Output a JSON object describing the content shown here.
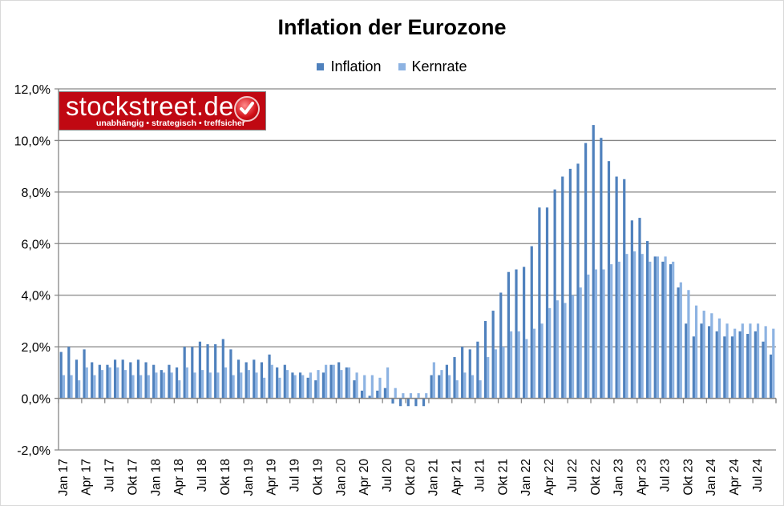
{
  "chart_data": {
    "type": "bar",
    "title": "Inflation der Eurozone",
    "legend_position": "top",
    "grid": true,
    "ylim": [
      -2,
      12
    ],
    "ytick_step": 2,
    "ytick_labels": [
      "-2,0%",
      "0,0%",
      "2,0%",
      "4,0%",
      "6,0%",
      "8,0%",
      "10,0%",
      "12,0%"
    ],
    "colors": {
      "Inflation": "#4f81bd",
      "Kernrate": "#8db3e2"
    },
    "categories": [
      "Jan 17",
      "Feb 17",
      "Mär 17",
      "Apr 17",
      "Mai 17",
      "Jun 17",
      "Jul 17",
      "Aug 17",
      "Sep 17",
      "Okt 17",
      "Nov 17",
      "Dez 17",
      "Jan 18",
      "Feb 18",
      "Mär 18",
      "Apr 18",
      "Mai 18",
      "Jun 18",
      "Jul 18",
      "Aug 18",
      "Sep 18",
      "Okt 18",
      "Nov 18",
      "Dez 18",
      "Jan 19",
      "Feb 19",
      "Mär 19",
      "Apr 19",
      "Mai 19",
      "Jun 19",
      "Jul 19",
      "Aug 19",
      "Sep 19",
      "Okt 19",
      "Nov 19",
      "Dez 19",
      "Jan 20",
      "Feb 20",
      "Mär 20",
      "Apr 20",
      "Mai 20",
      "Jun 20",
      "Jul 20",
      "Aug 20",
      "Sep 20",
      "Okt 20",
      "Nov 20",
      "Dez 20",
      "Jan 21",
      "Feb 21",
      "Mär 21",
      "Apr 21",
      "Mai 21",
      "Jun 21",
      "Jul 21",
      "Aug 21",
      "Sep 21",
      "Okt 21",
      "Nov 21",
      "Dez 21",
      "Jan 22",
      "Feb 22",
      "Mär 22",
      "Apr 22",
      "Mai 22",
      "Jun 22",
      "Jul 22",
      "Aug 22",
      "Sep 22",
      "Okt 22",
      "Nov 22",
      "Dez 22",
      "Jan 23",
      "Feb 23",
      "Mär 23",
      "Apr 23",
      "Mai 23",
      "Jun 23",
      "Jul 23",
      "Aug 23",
      "Sep 23",
      "Okt 23",
      "Nov 23",
      "Dez 23",
      "Jan 24",
      "Feb 24",
      "Mär 24",
      "Apr 24",
      "Mai 24",
      "Jun 24",
      "Jul 24",
      "Aug 24",
      "Sep 24"
    ],
    "xtick_labels": [
      "Jan 17",
      "Apr 17",
      "Jul 17",
      "Okt 17",
      "Jan 18",
      "Apr 18",
      "Jul 18",
      "Okt 18",
      "Jan 19",
      "Apr 19",
      "Jul 19",
      "Okt 19",
      "Jan 20",
      "Apr 20",
      "Jul 20",
      "Okt 20",
      "Jan 21",
      "Apr 21",
      "Jul 21",
      "Okt 21",
      "Jan 22",
      "Apr 22",
      "Jul 22",
      "Okt 22",
      "Jan 23",
      "Apr 23",
      "Jul 23",
      "Okt 23",
      "Jan 24",
      "Apr 24",
      "Jul 24"
    ],
    "series": [
      {
        "name": "Inflation",
        "values": [
          1.8,
          2.0,
          1.5,
          1.9,
          1.4,
          1.3,
          1.3,
          1.5,
          1.5,
          1.4,
          1.5,
          1.4,
          1.3,
          1.1,
          1.3,
          1.2,
          2.0,
          2.0,
          2.2,
          2.1,
          2.1,
          2.3,
          1.9,
          1.5,
          1.4,
          1.5,
          1.4,
          1.7,
          1.2,
          1.3,
          1.0,
          1.0,
          0.8,
          0.7,
          1.0,
          1.3,
          1.4,
          1.2,
          0.7,
          0.3,
          0.1,
          0.3,
          0.4,
          -0.2,
          -0.3,
          -0.3,
          -0.3,
          -0.3,
          0.9,
          0.9,
          1.3,
          1.6,
          2.0,
          1.9,
          2.2,
          3.0,
          3.4,
          4.1,
          4.9,
          5.0,
          5.1,
          5.9,
          7.4,
          7.4,
          8.1,
          8.6,
          8.9,
          9.1,
          9.9,
          10.6,
          10.1,
          9.2,
          8.6,
          8.5,
          6.9,
          7.0,
          6.1,
          5.5,
          5.3,
          5.2,
          4.3,
          2.9,
          2.4,
          2.9,
          2.8,
          2.6,
          2.4,
          2.4,
          2.6,
          2.5,
          2.6,
          2.2,
          1.7
        ]
      },
      {
        "name": "Kernrate",
        "values": [
          0.9,
          0.9,
          0.7,
          1.2,
          0.9,
          1.1,
          1.2,
          1.2,
          1.1,
          0.9,
          0.9,
          0.9,
          1.0,
          1.0,
          1.0,
          0.7,
          1.2,
          1.0,
          1.1,
          1.0,
          1.0,
          1.2,
          0.9,
          1.0,
          1.1,
          1.0,
          0.8,
          1.3,
          0.8,
          1.1,
          0.9,
          0.9,
          1.0,
          1.1,
          1.3,
          1.3,
          1.1,
          1.2,
          1.0,
          0.9,
          0.9,
          0.8,
          1.2,
          0.4,
          0.2,
          0.2,
          0.2,
          0.2,
          1.4,
          1.1,
          0.9,
          0.7,
          1.0,
          0.9,
          0.7,
          1.6,
          1.9,
          2.0,
          2.6,
          2.6,
          2.3,
          2.7,
          2.9,
          3.5,
          3.8,
          3.7,
          4.0,
          4.3,
          4.8,
          5.0,
          5.0,
          5.2,
          5.3,
          5.6,
          5.7,
          5.6,
          5.3,
          5.5,
          5.5,
          5.3,
          4.5,
          4.2,
          3.6,
          3.4,
          3.3,
          3.1,
          2.9,
          2.7,
          2.9,
          2.9,
          2.9,
          2.8,
          2.7
        ]
      }
    ]
  },
  "logo": {
    "brand": "stockstreet.de",
    "tagline": "unabhängig • strategisch • treffsicher"
  }
}
